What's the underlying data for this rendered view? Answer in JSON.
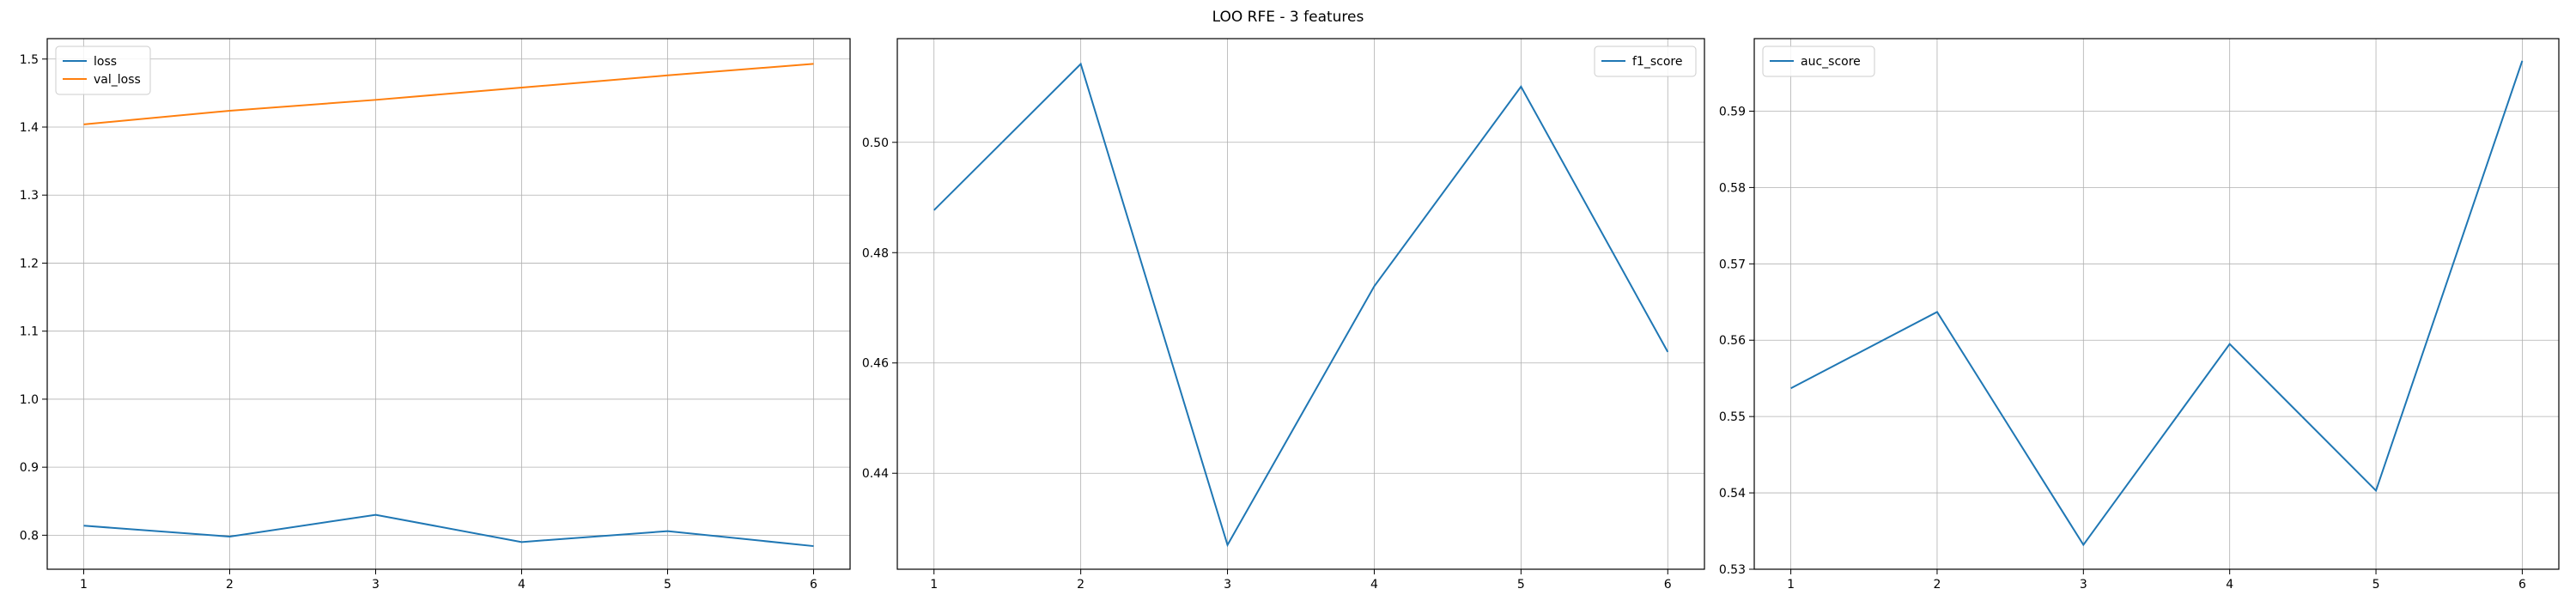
{
  "title": "LOO RFE - 3 features",
  "chart_data": [
    {
      "type": "line",
      "x": [
        1,
        2,
        3,
        4,
        5,
        6
      ],
      "xticks": [
        1,
        2,
        3,
        4,
        5,
        6
      ],
      "ylim": [
        0.75,
        1.53
      ],
      "yticks": [
        0.8,
        0.9,
        1.0,
        1.1,
        1.2,
        1.3,
        1.4,
        1.5
      ],
      "ydecimals": 1,
      "grid": true,
      "legend": "upper-left",
      "series": [
        {
          "name": "loss",
          "color": "#1f77b4",
          "values": [
            0.814,
            0.798,
            0.83,
            0.79,
            0.806,
            0.784
          ]
        },
        {
          "name": "val_loss",
          "color": "#ff7f0e",
          "values": [
            1.404,
            1.424,
            1.44,
            1.458,
            1.476,
            1.493
          ]
        }
      ]
    },
    {
      "type": "line",
      "x": [
        1,
        2,
        3,
        4,
        5,
        6
      ],
      "xticks": [
        1,
        2,
        3,
        4,
        5,
        6
      ],
      "ylim": [
        0.4226,
        0.5188
      ],
      "yticks": [
        0.44,
        0.46,
        0.48,
        0.5
      ],
      "ydecimals": 2,
      "grid": true,
      "legend": "upper-right",
      "series": [
        {
          "name": "f1_score",
          "color": "#1f77b4",
          "values": [
            0.4877,
            0.5142,
            0.427,
            0.4739,
            0.5101,
            0.462
          ]
        }
      ]
    },
    {
      "type": "line",
      "x": [
        1,
        2,
        3,
        4,
        5,
        6
      ],
      "xticks": [
        1,
        2,
        3,
        4,
        5,
        6
      ],
      "ylim": [
        0.53,
        0.5995
      ],
      "yticks": [
        0.53,
        0.54,
        0.55,
        0.56,
        0.57,
        0.58,
        0.59
      ],
      "ydecimals": 2,
      "grid": true,
      "legend": "upper-left",
      "series": [
        {
          "name": "auc_score",
          "color": "#1f77b4",
          "values": [
            0.5537,
            0.5637,
            0.5332,
            0.5595,
            0.5403,
            0.5966
          ]
        }
      ]
    }
  ]
}
